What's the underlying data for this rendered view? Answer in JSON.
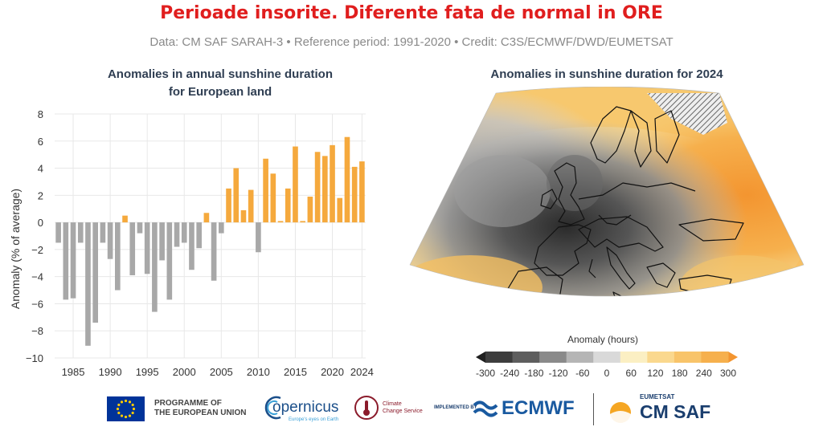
{
  "header": {
    "title": "Perioade insorite. Diferente fata de normal in ORE",
    "subtitle": "Data: CM SAF SARAH-3 • Reference period: 1991-2020 • Credit: C3S/ECMWF/DWD/EUMETSAT"
  },
  "colors": {
    "positive": "#f5a93d",
    "negative": "#a8a8a8",
    "title_red": "#e01e1e"
  },
  "chart_data": [
    {
      "type": "bar",
      "title": "Anomalies in annual sunshine duration for European land",
      "title_lines": [
        "Anomalies in annual sunshine duration",
        "for European land"
      ],
      "xlabel": "",
      "ylabel": "Anomaly (% of average)",
      "ylim": [
        -10,
        8
      ],
      "yticks": [
        -10,
        -8,
        -6,
        -4,
        -2,
        0,
        2,
        4,
        6,
        8
      ],
      "xticks": [
        1985,
        1990,
        1995,
        2000,
        2005,
        2010,
        2015,
        2020,
        2024
      ],
      "grid": true,
      "x": [
        1983,
        1984,
        1985,
        1986,
        1987,
        1988,
        1989,
        1990,
        1991,
        1992,
        1993,
        1994,
        1995,
        1996,
        1997,
        1998,
        1999,
        2000,
        2001,
        2002,
        2003,
        2004,
        2005,
        2006,
        2007,
        2008,
        2009,
        2010,
        2011,
        2012,
        2013,
        2014,
        2015,
        2016,
        2017,
        2018,
        2019,
        2020,
        2021,
        2022,
        2023,
        2024
      ],
      "values": [
        -1.5,
        -5.7,
        -5.6,
        -1.5,
        -9.1,
        -7.4,
        -1.5,
        -2.7,
        -5.0,
        0.5,
        -3.9,
        -0.8,
        -3.8,
        -6.6,
        -2.8,
        -5.7,
        -1.8,
        -1.5,
        -3.5,
        -1.9,
        0.7,
        -4.3,
        -0.8,
        2.5,
        4.0,
        0.9,
        2.4,
        -2.2,
        4.7,
        3.6,
        0.1,
        2.5,
        5.6,
        0.1,
        1.9,
        5.2,
        4.9,
        5.7,
        1.8,
        6.3,
        4.1,
        4.5
      ]
    },
    {
      "type": "heatmap",
      "title": "Anomalies in sunshine duration for 2024",
      "colorbar_label": "Anomaly (hours)",
      "colorbar_ticks": [
        -300,
        -240,
        -180,
        -120,
        -60,
        0,
        60,
        120,
        180,
        240,
        300
      ],
      "colorbar_colors": [
        "#1f1f1f",
        "#3d3d3d",
        "#5e5e5e",
        "#8a8a8a",
        "#b5b5b5",
        "#d9d9d9",
        "#fbefc3",
        "#fad88e",
        "#f8c46a",
        "#f6b04d",
        "#f39530"
      ]
    }
  ],
  "footer": {
    "eu_label_line1": "PROGRAMME OF",
    "eu_label_line2": "THE EUROPEAN UNION",
    "copernicus": "opernicus",
    "copernicus_tagline": "Europe's eyes on Earth",
    "c3s_line1": "Climate",
    "c3s_line2": "Change Service",
    "implemented_by": "IMPLEMENTED BY",
    "ecmwf": "ECMWF",
    "eumetsat": "EUMETSAT",
    "cmsaf": "CM SAF"
  }
}
